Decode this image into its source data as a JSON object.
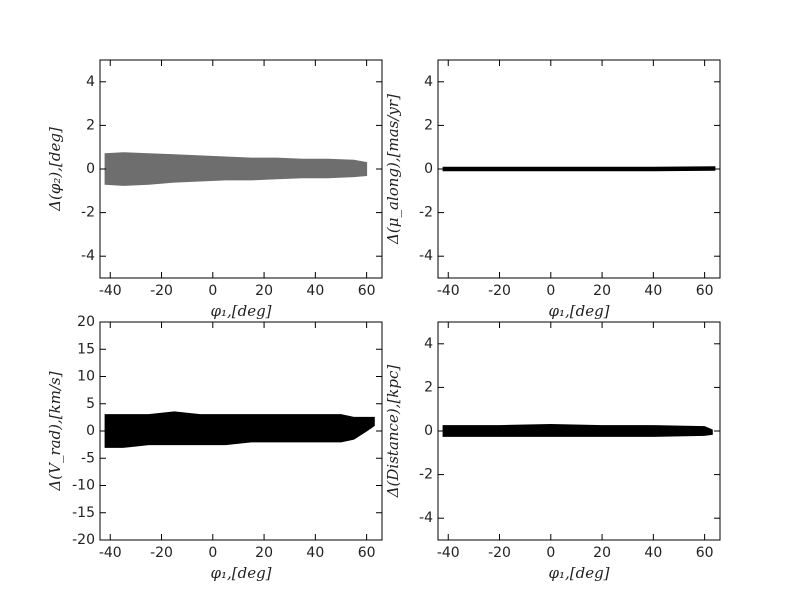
{
  "chart_data": [
    {
      "type": "band",
      "color": "#6e6e6e",
      "xlabel": "φ₁,[deg]",
      "ylabel": "Δ(φ₂),[deg]",
      "xlim": [
        -44,
        66
      ],
      "ylim": [
        -5,
        5
      ],
      "xticks": [
        -40,
        -20,
        0,
        20,
        40,
        60
      ],
      "yticks": [
        -4,
        -2,
        0,
        2,
        4
      ],
      "x": [
        -42,
        -35,
        -25,
        -15,
        -5,
        5,
        15,
        25,
        35,
        45,
        55,
        60
      ],
      "upper": [
        0.7,
        0.75,
        0.7,
        0.65,
        0.6,
        0.55,
        0.5,
        0.5,
        0.45,
        0.45,
        0.4,
        0.3
      ],
      "lower": [
        -0.7,
        -0.75,
        -0.7,
        -0.6,
        -0.55,
        -0.5,
        -0.5,
        -0.45,
        -0.4,
        -0.4,
        -0.35,
        -0.3
      ]
    },
    {
      "type": "band",
      "color": "#000000",
      "xlabel": "φ₁,[deg]",
      "ylabel": "Δ(μ_along),[mas/yr]",
      "xlim": [
        -44,
        66
      ],
      "ylim": [
        -5,
        5
      ],
      "xticks": [
        -40,
        -20,
        0,
        20,
        40,
        60
      ],
      "yticks": [
        -4,
        -2,
        0,
        2,
        4
      ],
      "x": [
        -42,
        -20,
        0,
        20,
        40,
        64
      ],
      "upper": [
        0.08,
        0.08,
        0.08,
        0.08,
        0.08,
        0.1
      ],
      "lower": [
        -0.08,
        -0.08,
        -0.08,
        -0.08,
        -0.08,
        -0.06
      ]
    },
    {
      "type": "band",
      "color": "#000000",
      "xlabel": "φ₁,[deg]",
      "ylabel": "Δ(V_rad),[km/s]",
      "xlim": [
        -44,
        66
      ],
      "ylim": [
        -20,
        20
      ],
      "xticks": [
        -40,
        -20,
        0,
        20,
        40,
        60
      ],
      "yticks": [
        -20,
        -15,
        -10,
        -5,
        0,
        5,
        10,
        15,
        20
      ],
      "x": [
        -42,
        -35,
        -25,
        -15,
        -5,
        5,
        15,
        25,
        35,
        45,
        50,
        55,
        60,
        63
      ],
      "upper": [
        3,
        3,
        3,
        3.5,
        3,
        3,
        3,
        3,
        3,
        3,
        3,
        2.5,
        2.5,
        2.5
      ],
      "lower": [
        -3,
        -3,
        -2.5,
        -2.5,
        -2.5,
        -2.5,
        -2,
        -2,
        -2,
        -2,
        -2,
        -1.5,
        0,
        1
      ]
    },
    {
      "type": "band",
      "color": "#000000",
      "xlabel": "φ₁,[deg]",
      "ylabel": "Δ(Distance),[kpc]",
      "xlim": [
        -44,
        66
      ],
      "ylim": [
        -5,
        5
      ],
      "xticks": [
        -40,
        -20,
        0,
        20,
        40,
        60
      ],
      "yticks": [
        -4,
        -2,
        0,
        2,
        4
      ],
      "x": [
        -42,
        -20,
        0,
        20,
        40,
        60,
        63
      ],
      "upper": [
        0.25,
        0.25,
        0.3,
        0.25,
        0.25,
        0.2,
        0.05
      ],
      "lower": [
        -0.25,
        -0.25,
        -0.25,
        -0.25,
        -0.25,
        -0.2,
        -0.15
      ]
    }
  ]
}
